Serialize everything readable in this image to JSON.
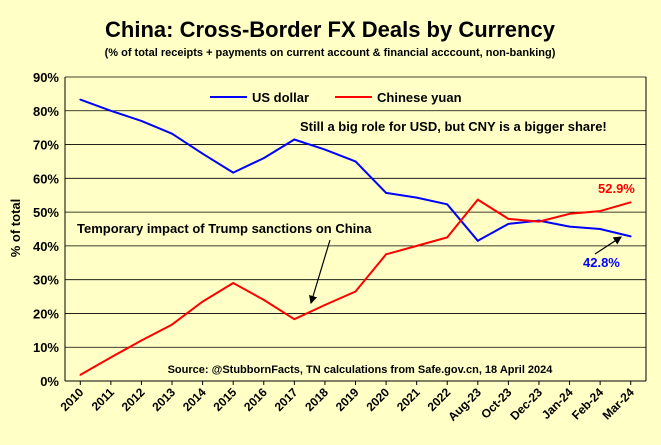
{
  "chart_data": {
    "type": "line",
    "title": "China: Cross-Border FX Deals by Currency",
    "subtitle": "(% of total receipts + payments on current account & financial acccount, non-banking)",
    "xlabel": "",
    "ylabel": "% of total",
    "ylim": [
      0,
      90
    ],
    "yticks": [
      "0%",
      "10%",
      "20%",
      "30%",
      "40%",
      "50%",
      "60%",
      "70%",
      "80%",
      "90%"
    ],
    "grid": true,
    "categories": [
      "2010",
      "2011",
      "2012",
      "2013",
      "2014",
      "2015",
      "2016",
      "2017",
      "2018",
      "2019",
      "2020",
      "2021",
      "2022",
      "Aug-23",
      "Oct-23",
      "Dec-23",
      "Jan-24",
      "Feb-24",
      "Mar-24"
    ],
    "legend": {
      "placement": "top-center",
      "items": [
        {
          "name": "US dollar",
          "color": "#0000ff"
        },
        {
          "name": "Chinese yuan",
          "color": "#ff0000"
        }
      ]
    },
    "series": [
      {
        "name": "US dollar",
        "color": "#0000ff",
        "values": [
          83.3,
          80.0,
          77.0,
          73.2,
          67.3,
          61.7,
          66.0,
          71.5,
          68.5,
          65.0,
          55.7,
          54.3,
          52.3,
          41.5,
          46.5,
          47.5,
          45.7,
          45.0,
          42.8
        ]
      },
      {
        "name": "Chinese yuan",
        "color": "#ff0000",
        "values": [
          1.8,
          7.0,
          12.0,
          16.7,
          23.5,
          29.0,
          24.0,
          18.3,
          22.5,
          26.5,
          37.5,
          40.0,
          42.5,
          53.7,
          48.0,
          47.2,
          49.5,
          50.3,
          52.9
        ]
      }
    ],
    "annotations": {
      "usd_note": "Still a big role for USD, but CNY is a bigger share!",
      "sanctions_note": "Temporary impact of Trump sanctions on China",
      "cny_end_label": "52.9%",
      "usd_end_label": "42.8%",
      "source": "Source: @StubbornFacts, TN calculations from Safe.gov.cn, 18 April 2024"
    },
    "colors": {
      "background": "#ffffc6",
      "grid": "#000000",
      "text": "#000000"
    }
  }
}
